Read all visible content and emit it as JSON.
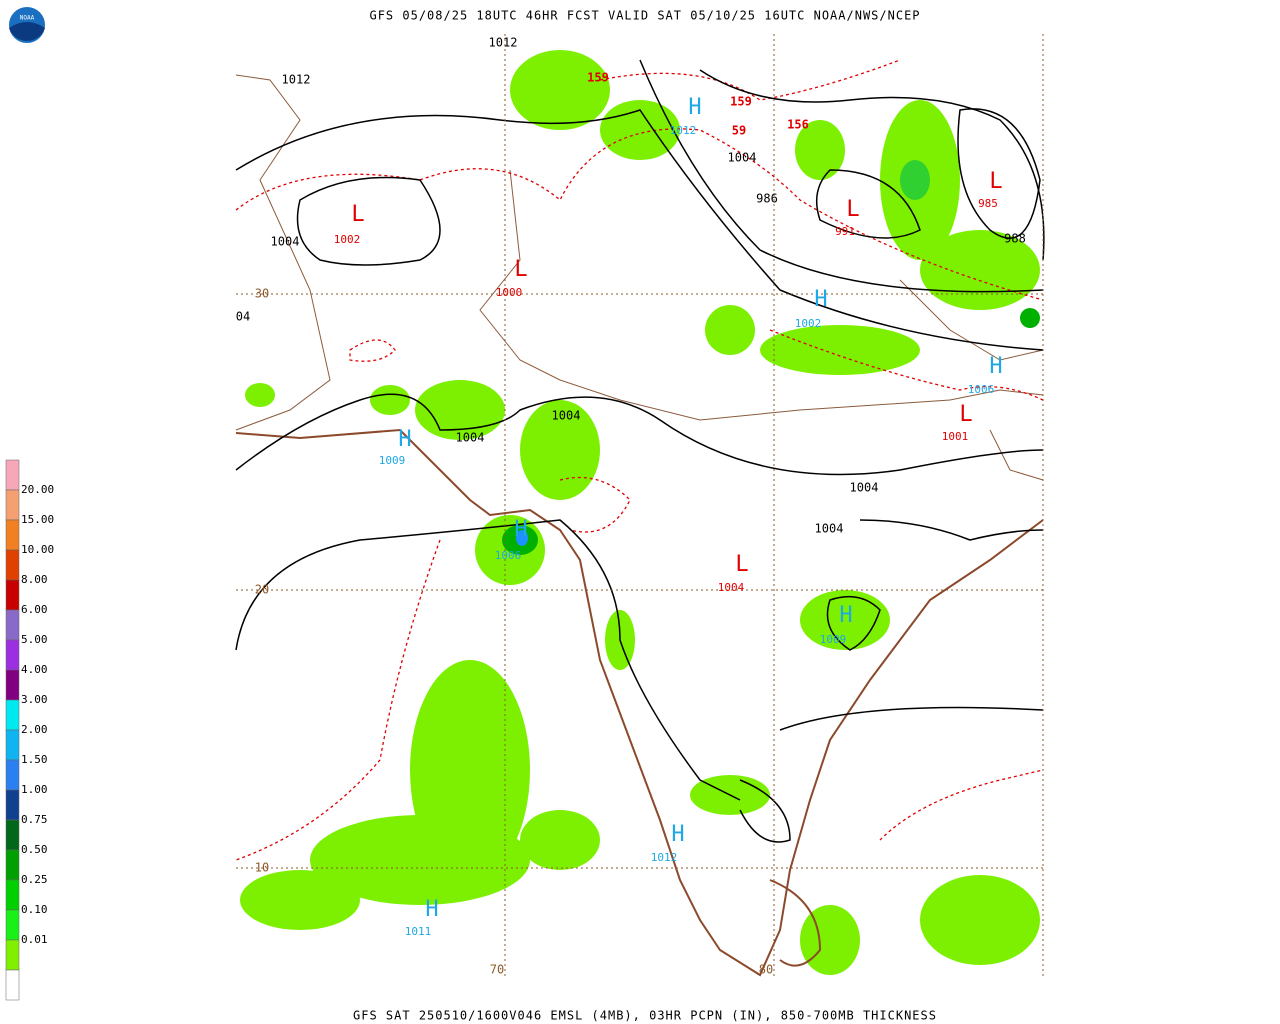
{
  "header": {
    "title": "GFS 05/08/25 18UTC 46HR FCST VALID SAT 05/10/25 16UTC NOAA/NWS/NCEP"
  },
  "footer": {
    "text": "GFS SAT 250510/1600V046 EMSL (4MB), 03HR PCPN (IN), 850-700MB THICKNESS"
  },
  "logo": {
    "text": "NOAA"
  },
  "legend": {
    "labels": [
      "20.00",
      "15.00",
      "10.00",
      "8.00",
      "6.00",
      "5.00",
      "4.00",
      "3.00",
      "2.00",
      "1.50",
      "1.00",
      "0.75",
      "0.50",
      "0.25",
      "0.10",
      "0.01"
    ]
  },
  "grid_labels": [
    "30",
    "20",
    "10",
    "70",
    "80"
  ],
  "isobar_labels": [
    "1012",
    "1012",
    "1004",
    "1004",
    "986",
    "988",
    "1004",
    "1004",
    "1004",
    "1004",
    "04"
  ],
  "thickness_labels": [
    "159",
    "159",
    "59",
    "156"
  ],
  "pressure_centers": [
    {
      "symbol": "H",
      "value": "1012"
    },
    {
      "symbol": "L",
      "value": "1002"
    },
    {
      "symbol": "L",
      "value": "1000"
    },
    {
      "symbol": "L",
      "value": "991"
    },
    {
      "symbol": "L",
      "value": "985"
    },
    {
      "symbol": "H",
      "value": "1002"
    },
    {
      "symbol": "H",
      "value": "1006"
    },
    {
      "symbol": "L",
      "value": "1001"
    },
    {
      "symbol": "H",
      "value": "1009"
    },
    {
      "symbol": "H",
      "value": "1006"
    },
    {
      "symbol": "L",
      "value": "1004"
    },
    {
      "symbol": "H",
      "value": "1009"
    },
    {
      "symbol": "H",
      "value": "1012"
    },
    {
      "symbol": "H",
      "value": "1011"
    }
  ]
}
